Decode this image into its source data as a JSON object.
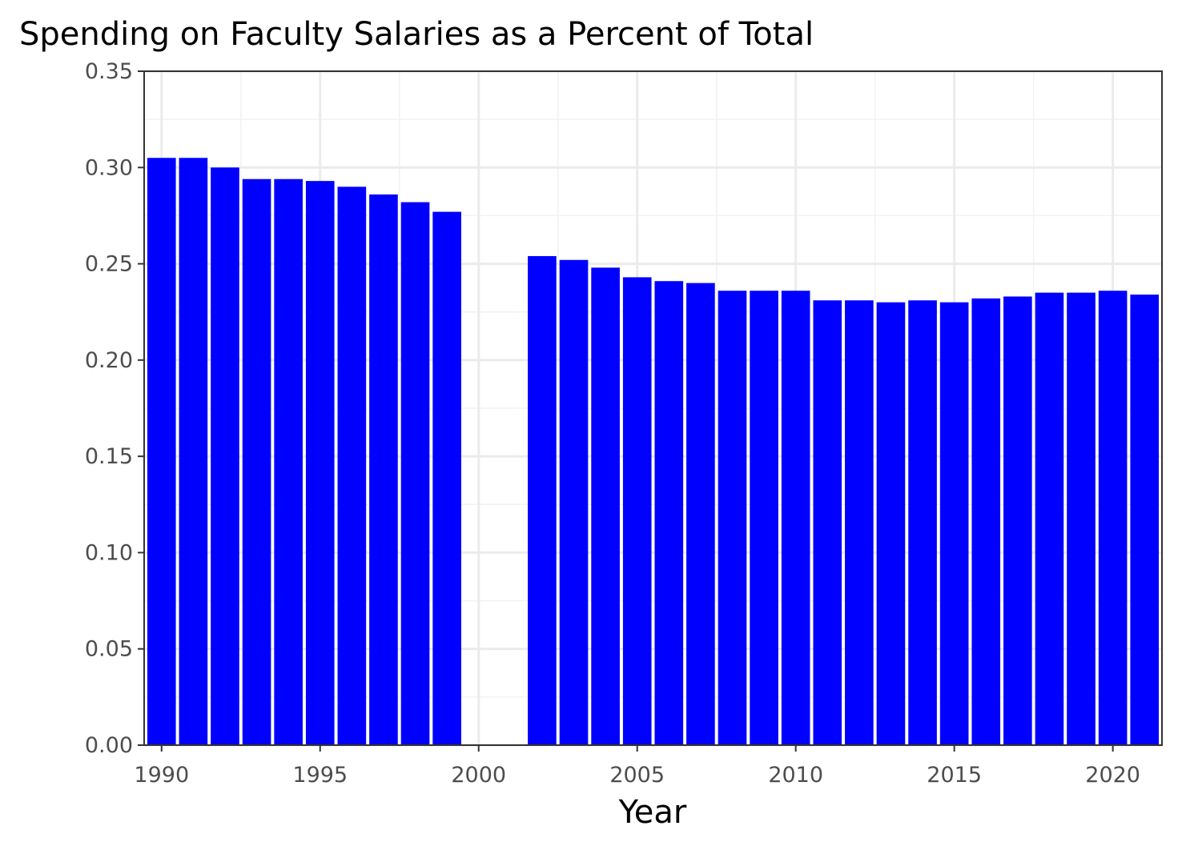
{
  "chart_data": {
    "type": "bar",
    "title": "Spending on Faculty Salaries as a Percent of Total",
    "xlabel": "Year",
    "ylabel": "",
    "x": [
      1990,
      1991,
      1992,
      1993,
      1994,
      1995,
      1996,
      1997,
      1998,
      1999,
      2002,
      2003,
      2004,
      2005,
      2006,
      2007,
      2008,
      2009,
      2010,
      2011,
      2012,
      2013,
      2014,
      2015,
      2016,
      2017,
      2018,
      2019,
      2020,
      2021
    ],
    "values": [
      0.305,
      0.305,
      0.3,
      0.294,
      0.294,
      0.293,
      0.29,
      0.286,
      0.282,
      0.277,
      0.254,
      0.252,
      0.248,
      0.243,
      0.241,
      0.24,
      0.236,
      0.236,
      0.236,
      0.231,
      0.231,
      0.23,
      0.231,
      0.23,
      0.232,
      0.233,
      0.235,
      0.235,
      0.236,
      0.234
    ],
    "bar_color": "#0000ff",
    "xlim": [
      1989.45,
      2021.55
    ],
    "ylim": [
      0,
      0.35
    ],
    "x_ticks": [
      "1990",
      "1995",
      "2000",
      "2005",
      "2010",
      "2015",
      "2020"
    ],
    "y_ticks": [
      "0.00",
      "0.05",
      "0.10",
      "0.15",
      "0.20",
      "0.25",
      "0.30",
      "0.35"
    ],
    "grid": true,
    "legend": "none"
  }
}
